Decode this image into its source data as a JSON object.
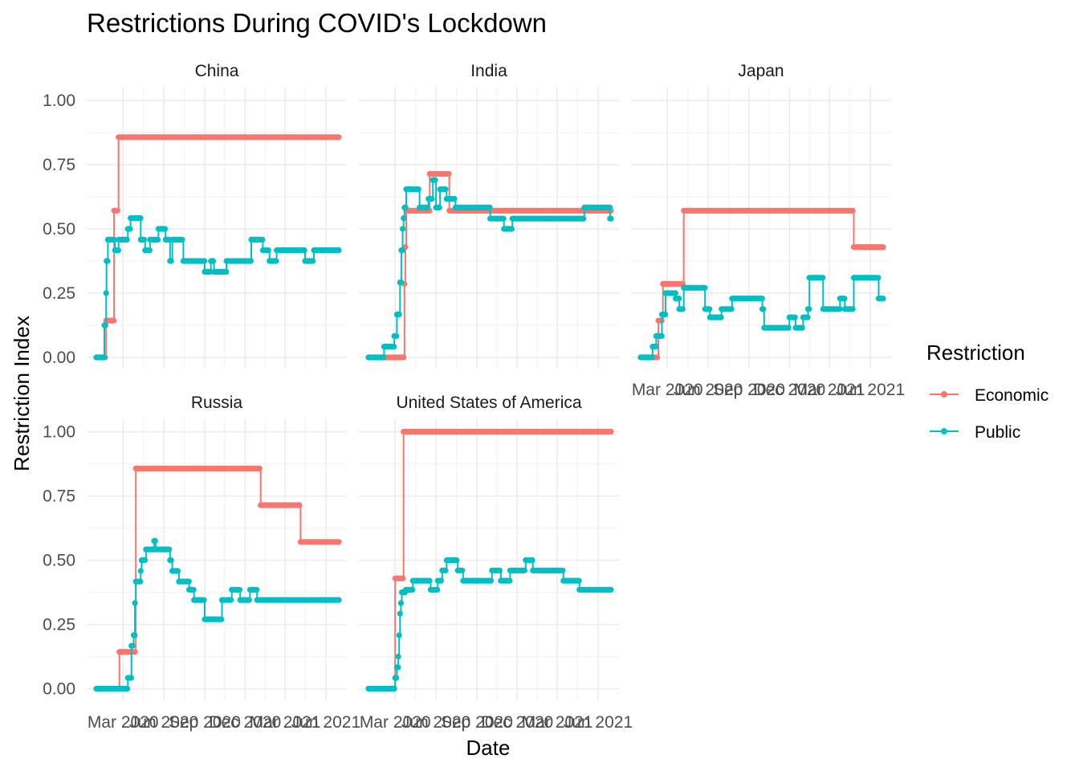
{
  "colors": {
    "Economic": "#F8766D",
    "Public": "#00BFC4",
    "grid_major": "#ebebeb",
    "grid_minor": "#f4f4f4"
  },
  "chart_data": {
    "type": "line",
    "title": "Restrictions During COVID's Lockdown",
    "xlabel": "Date",
    "ylabel": "Restriction Index",
    "ylim": [
      0,
      1
    ],
    "y_ticks": [
      "0.00",
      "0.25",
      "0.50",
      "0.75",
      "1.00"
    ],
    "x_tick_labels": [
      "Mar 2020",
      "Jun 2020",
      "Sep 2020",
      "Dec 2020",
      "Mar 2021",
      "Jun 2021"
    ],
    "x_tick_dates": [
      "2020-03-01",
      "2020-06-01",
      "2020-09-01",
      "2020-12-01",
      "2021-03-01",
      "2021-06-01"
    ],
    "x_range": [
      "2020-01-01",
      "2021-06-30"
    ],
    "grid": true,
    "legend": {
      "title": "Restriction",
      "placement": "right",
      "entries": [
        "Economic",
        "Public"
      ]
    },
    "panels": [
      {
        "name": "China",
        "series": [
          {
            "name": "Economic",
            "points": [
              [
                "2020-01-01",
                0
              ],
              [
                "2020-01-23",
                0.143
              ],
              [
                "2020-02-10",
                0.571
              ],
              [
                "2020-02-20",
                0.857
              ],
              [
                "2021-06-30",
                0.857
              ]
            ]
          },
          {
            "name": "Public",
            "points": [
              [
                "2020-01-01",
                0
              ],
              [
                "2020-01-16",
                0
              ],
              [
                "2020-01-19",
                0.125
              ],
              [
                "2020-01-23",
                0.25
              ],
              [
                "2020-01-24",
                0.375
              ],
              [
                "2020-01-27",
                0.458
              ],
              [
                "2020-02-10",
                0.458
              ],
              [
                "2020-02-12",
                0.417
              ],
              [
                "2020-02-20",
                0.458
              ],
              [
                "2020-03-10",
                0.458
              ],
              [
                "2020-03-12",
                0.5
              ],
              [
                "2020-03-18",
                0.542
              ],
              [
                "2020-04-10",
                0.458
              ],
              [
                "2020-04-20",
                0.417
              ],
              [
                "2020-05-01",
                0.458
              ],
              [
                "2020-05-20",
                0.5
              ],
              [
                "2020-06-05",
                0.458
              ],
              [
                "2020-06-15",
                0.375
              ],
              [
                "2020-06-20",
                0.458
              ],
              [
                "2020-07-15",
                0.375
              ],
              [
                "2020-09-01",
                0.333
              ],
              [
                "2020-09-15",
                0.375
              ],
              [
                "2020-09-22",
                0.333
              ],
              [
                "2020-10-20",
                0.375
              ],
              [
                "2020-12-15",
                0.458
              ],
              [
                "2021-01-10",
                0.417
              ],
              [
                "2021-01-25",
                0.375
              ],
              [
                "2021-02-10",
                0.417
              ],
              [
                "2021-04-15",
                0.375
              ],
              [
                "2021-05-05",
                0.417
              ],
              [
                "2021-06-30",
                0.417
              ]
            ]
          }
        ]
      },
      {
        "name": "India",
        "series": [
          {
            "name": "Economic",
            "points": [
              [
                "2020-01-01",
                0
              ],
              [
                "2020-03-20",
                0
              ],
              [
                "2020-03-22",
                0.286
              ],
              [
                "2020-03-24",
                0.429
              ],
              [
                "2020-03-26",
                0.571
              ],
              [
                "2020-05-15",
                0.571
              ],
              [
                "2020-05-18",
                0.714
              ],
              [
                "2020-06-30",
                0.714
              ],
              [
                "2020-07-01",
                0.571
              ],
              [
                "2021-06-30",
                0.571
              ]
            ]
          },
          {
            "name": "Public",
            "points": [
              [
                "2020-01-01",
                0
              ],
              [
                "2020-02-01",
                0
              ],
              [
                "2020-02-05",
                0.042
              ],
              [
                "2020-02-28",
                0.083
              ],
              [
                "2020-03-05",
                0.167
              ],
              [
                "2020-03-12",
                0.292
              ],
              [
                "2020-03-15",
                0.417
              ],
              [
                "2020-03-18",
                0.5
              ],
              [
                "2020-03-20",
                0.542
              ],
              [
                "2020-03-22",
                0.583
              ],
              [
                "2020-03-26",
                0.654
              ],
              [
                "2020-04-25",
                0.583
              ],
              [
                "2020-05-15",
                0.617
              ],
              [
                "2020-05-25",
                0.69
              ],
              [
                "2020-06-01",
                0.583
              ],
              [
                "2020-06-10",
                0.654
              ],
              [
                "2020-06-25",
                0.617
              ],
              [
                "2020-07-15",
                0.583
              ],
              [
                "2020-09-10",
                0.583
              ],
              [
                "2020-10-01",
                0.54
              ],
              [
                "2020-11-01",
                0.5
              ],
              [
                "2020-11-20",
                0.54
              ],
              [
                "2021-05-01",
                0.583
              ],
              [
                "2021-06-28",
                0.54
              ],
              [
                "2021-06-30",
                0.54
              ]
            ]
          }
        ]
      },
      {
        "name": "Japan",
        "series": [
          {
            "name": "Economic",
            "points": [
              [
                "2020-01-01",
                0
              ],
              [
                "2020-02-05",
                0
              ],
              [
                "2020-02-10",
                0.143
              ],
              [
                "2020-02-20",
                0.286
              ],
              [
                "2020-04-07",
                0.571
              ],
              [
                "2021-04-20",
                0.571
              ],
              [
                "2021-04-25",
                0.429
              ],
              [
                "2021-06-30",
                0.429
              ]
            ]
          },
          {
            "name": "Public",
            "points": [
              [
                "2020-01-01",
                0
              ],
              [
                "2020-01-28",
                0.042
              ],
              [
                "2020-02-05",
                0.083
              ],
              [
                "2020-02-18",
                0.167
              ],
              [
                "2020-02-26",
                0.25
              ],
              [
                "2020-03-20",
                0.229
              ],
              [
                "2020-03-28",
                0.188
              ],
              [
                "2020-04-07",
                0.271
              ],
              [
                "2020-05-25",
                0.188
              ],
              [
                "2020-06-05",
                0.156
              ],
              [
                "2020-07-01",
                0.188
              ],
              [
                "2020-07-25",
                0.229
              ],
              [
                "2020-10-01",
                0.188
              ],
              [
                "2020-10-05",
                0.115
              ],
              [
                "2020-12-01",
                0.156
              ],
              [
                "2020-12-15",
                0.115
              ],
              [
                "2021-01-01",
                0.156
              ],
              [
                "2021-01-12",
                0.188
              ],
              [
                "2021-01-15",
                0.31
              ],
              [
                "2021-02-15",
                0.188
              ],
              [
                "2021-03-25",
                0.229
              ],
              [
                "2021-04-05",
                0.188
              ],
              [
                "2021-04-25",
                0.31
              ],
              [
                "2021-06-20",
                0.229
              ],
              [
                "2021-06-30",
                0.229
              ]
            ]
          }
        ]
      },
      {
        "name": "Russia",
        "series": [
          {
            "name": "Economic",
            "points": [
              [
                "2020-01-01",
                0
              ],
              [
                "2020-02-20",
                0
              ],
              [
                "2020-02-22",
                0.143
              ],
              [
                "2020-03-30",
                0.857
              ],
              [
                "2020-12-31",
                0.857
              ],
              [
                "2021-01-05",
                0.714
              ],
              [
                "2021-03-31",
                0.714
              ],
              [
                "2021-04-05",
                0.571
              ],
              [
                "2021-06-30",
                0.571
              ]
            ]
          },
          {
            "name": "Public",
            "points": [
              [
                "2020-01-01",
                0
              ],
              [
                "2020-03-01",
                0
              ],
              [
                "2020-03-12",
                0.042
              ],
              [
                "2020-03-20",
                0.167
              ],
              [
                "2020-03-25",
                0.208
              ],
              [
                "2020-03-28",
                0.333
              ],
              [
                "2020-03-30",
                0.417
              ],
              [
                "2020-04-10",
                0.458
              ],
              [
                "2020-04-12",
                0.5
              ],
              [
                "2020-04-22",
                0.542
              ],
              [
                "2020-05-10",
                0.575
              ],
              [
                "2020-05-14",
                0.542
              ],
              [
                "2020-06-15",
                0.5
              ],
              [
                "2020-06-20",
                0.458
              ],
              [
                "2020-07-05",
                0.417
              ],
              [
                "2020-07-28",
                0.385
              ],
              [
                "2020-08-08",
                0.345
              ],
              [
                "2020-09-01",
                0.27
              ],
              [
                "2020-10-10",
                0.345
              ],
              [
                "2020-11-01",
                0.385
              ],
              [
                "2020-11-20",
                0.345
              ],
              [
                "2020-12-12",
                0.385
              ],
              [
                "2020-12-28",
                0.345
              ],
              [
                "2021-06-30",
                0.345
              ]
            ]
          }
        ]
      },
      {
        "name": "United States of America",
        "series": [
          {
            "name": "Economic",
            "points": [
              [
                "2020-01-01",
                0
              ],
              [
                "2020-02-28",
                0
              ],
              [
                "2020-03-01",
                0.429
              ],
              [
                "2020-03-20",
                1.0
              ],
              [
                "2021-06-30",
                1.0
              ]
            ]
          },
          {
            "name": "Public",
            "points": [
              [
                "2020-01-01",
                0
              ],
              [
                "2020-02-28",
                0
              ],
              [
                "2020-03-01",
                0.042
              ],
              [
                "2020-03-05",
                0.083
              ],
              [
                "2020-03-08",
                0.125
              ],
              [
                "2020-03-10",
                0.208
              ],
              [
                "2020-03-12",
                0.292
              ],
              [
                "2020-03-14",
                0.333
              ],
              [
                "2020-03-16",
                0.375
              ],
              [
                "2020-03-25",
                0.385
              ],
              [
                "2020-04-10",
                0.42
              ],
              [
                "2020-05-20",
                0.385
              ],
              [
                "2020-06-05",
                0.42
              ],
              [
                "2020-06-15",
                0.46
              ],
              [
                "2020-06-25",
                0.5
              ],
              [
                "2020-07-20",
                0.46
              ],
              [
                "2020-08-01",
                0.42
              ],
              [
                "2020-09-15",
                0.42
              ],
              [
                "2020-10-05",
                0.46
              ],
              [
                "2020-10-25",
                0.42
              ],
              [
                "2020-11-15",
                0.46
              ],
              [
                "2020-12-20",
                0.5
              ],
              [
                "2021-01-05",
                0.46
              ],
              [
                "2021-03-15",
                0.42
              ],
              [
                "2021-04-20",
                0.385
              ],
              [
                "2021-06-30",
                0.385
              ]
            ]
          }
        ]
      }
    ]
  }
}
